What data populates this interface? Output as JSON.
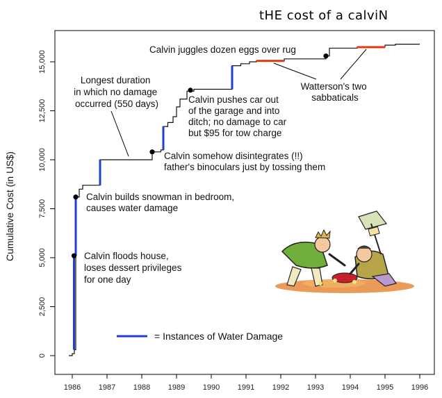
{
  "chart_data": {
    "type": "line",
    "title": "tHE cost of a calviN",
    "xlabel": "",
    "ylabel": "Cumulative Cost (in US$)",
    "xlim": [
      1985.8,
      1996.3
    ],
    "ylim": [
      -300,
      16600
    ],
    "x_ticks": [
      1986,
      1987,
      1988,
      1989,
      1990,
      1991,
      1992,
      1993,
      1994,
      1995,
      1996
    ],
    "x_tick_labels": [
      "1986",
      "1987",
      "1988",
      "1989",
      "1990",
      "1991",
      "1992",
      "1993",
      "1994",
      "1995",
      "1996"
    ],
    "y_ticks": [
      0,
      2500,
      5000,
      7500,
      10000,
      12500,
      15000
    ],
    "y_tick_labels": [
      "0",
      "2,500",
      "5,000",
      "7,500",
      "10,000",
      "12,500",
      "15,000"
    ],
    "grid": false,
    "series": [
      {
        "name": "Cumulative Cost",
        "step_points": [
          [
            1985.9,
            0
          ],
          [
            1986.0,
            0
          ],
          [
            1986.0,
            100
          ],
          [
            1986.06,
            100
          ],
          [
            1986.06,
            300
          ],
          [
            1986.1,
            300
          ],
          [
            1986.1,
            8100
          ],
          [
            1986.2,
            8100
          ],
          [
            1986.2,
            8500
          ],
          [
            1986.3,
            8500
          ],
          [
            1986.3,
            8700
          ],
          [
            1986.8,
            8700
          ],
          [
            1986.8,
            10000
          ],
          [
            1988.3,
            10000
          ],
          [
            1988.3,
            10400
          ],
          [
            1988.55,
            10400
          ],
          [
            1988.55,
            10500
          ],
          [
            1988.62,
            10500
          ],
          [
            1988.62,
            11700
          ],
          [
            1988.75,
            11700
          ],
          [
            1988.75,
            11900
          ],
          [
            1988.9,
            11900
          ],
          [
            1988.9,
            12200
          ],
          [
            1989.0,
            12200
          ],
          [
            1989.0,
            12700
          ],
          [
            1989.1,
            12700
          ],
          [
            1989.1,
            13100
          ],
          [
            1989.3,
            13100
          ],
          [
            1989.3,
            13500
          ],
          [
            1989.5,
            13500
          ],
          [
            1989.5,
            13600
          ],
          [
            1990.6,
            13600
          ],
          [
            1990.6,
            14800
          ],
          [
            1990.85,
            14800
          ],
          [
            1990.85,
            14900
          ],
          [
            1991.1,
            14900
          ],
          [
            1991.1,
            15000
          ],
          [
            1991.3,
            15000
          ],
          [
            1991.3,
            15050
          ],
          [
            1992.1,
            15050
          ],
          [
            1992.1,
            15150
          ],
          [
            1993.3,
            15150
          ],
          [
            1993.3,
            15300
          ],
          [
            1993.4,
            15300
          ],
          [
            1993.4,
            15700
          ],
          [
            1994.2,
            15700
          ],
          [
            1994.2,
            15750
          ],
          [
            1995.0,
            15750
          ],
          [
            1995.0,
            15850
          ],
          [
            1995.3,
            15850
          ],
          [
            1995.3,
            15900
          ],
          [
            1996.0,
            15900
          ]
        ]
      }
    ],
    "water_damage": [
      {
        "x": 1986.05,
        "y0": 300,
        "y1": 5100
      },
      {
        "x": 1986.1,
        "y0": 5100,
        "y1": 8100
      },
      {
        "x": 1986.8,
        "y0": 8700,
        "y1": 10000
      },
      {
        "x": 1988.62,
        "y0": 10500,
        "y1": 11700
      },
      {
        "x": 1990.6,
        "y0": 13600,
        "y1": 14800
      }
    ],
    "sabbaticals": [
      {
        "x0": 1991.3,
        "x1": 1992.1,
        "y": 15050
      },
      {
        "x0": 1994.2,
        "x1": 1995.0,
        "y": 15750
      }
    ],
    "event_points": [
      {
        "x": 1986.05,
        "y": 5100
      },
      {
        "x": 1986.1,
        "y": 8100
      },
      {
        "x": 1988.3,
        "y": 10400
      },
      {
        "x": 1989.4,
        "y": 13550
      },
      {
        "x": 1993.3,
        "y": 15300
      }
    ],
    "annotations": [
      {
        "lines": [
          "Calvin floods house,",
          "loses dessert privileges",
          "for one day"
        ]
      },
      {
        "lines": [
          "Calvin builds snowman in bedroom,",
          "causes water damage"
        ]
      },
      {
        "lines": [
          "Longest duration",
          "in which no damage",
          "occurred (550 days)"
        ]
      },
      {
        "lines": [
          "Calvin somehow disintegrates (!!)",
          "father's binoculars just by tossing them"
        ]
      },
      {
        "lines": [
          "Calvin pushes car out",
          "of the garage and into",
          "ditch; no damage to car",
          "but $95 for tow charge"
        ]
      },
      {
        "lines": [
          "Calvin juggles dozen eggs over rug"
        ]
      },
      {
        "lines": [
          "Watterson's two",
          "sabbaticals"
        ]
      }
    ],
    "legend": {
      "label": "= Instances of Water Damage",
      "color": "#1f3fd6",
      "position": "bottom-center"
    },
    "colors": {
      "line": "#111111",
      "water": "#1f3fd6",
      "sabbatical": "#e63a14"
    },
    "illustration": "calvin-and-father-cartoon-icon"
  }
}
